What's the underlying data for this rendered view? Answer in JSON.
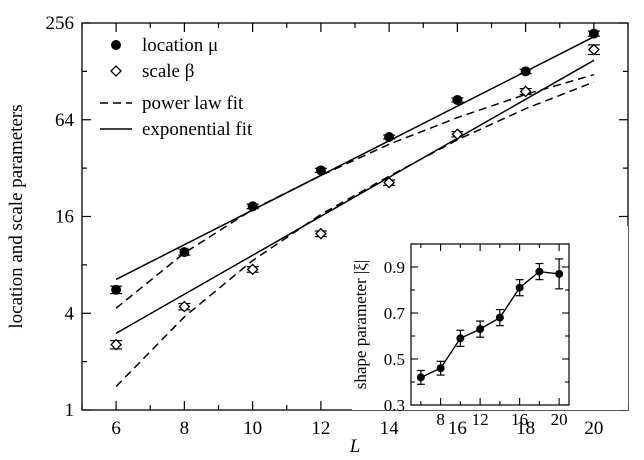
{
  "chart_data": [
    {
      "type": "line",
      "xlabel": "L",
      "ylabel": "location and scale parameters",
      "xlim": [
        5,
        21
      ],
      "ylim": [
        1,
        256
      ],
      "yscale": "log2",
      "xticks": [
        6,
        8,
        10,
        12,
        14,
        16,
        18,
        20
      ],
      "xtick_labels": [
        "6",
        "8",
        "10",
        "12",
        "14",
        "16",
        "18",
        "20"
      ],
      "yticks": [
        1,
        4,
        16,
        64,
        256
      ],
      "ytick_labels": [
        "1",
        "4",
        "16",
        "64",
        "256"
      ],
      "grid": false,
      "legend_position": "top-left",
      "legend": [
        {
          "label": "location μ",
          "marker": "filled-circle"
        },
        {
          "label": "scale β",
          "marker": "open-diamond"
        },
        {
          "label": "power law fit",
          "style": "dashed"
        },
        {
          "label": "exponential fit",
          "style": "solid"
        }
      ],
      "x": [
        6,
        8,
        10,
        12,
        14,
        16,
        18,
        20
      ],
      "series": [
        {
          "name": "location μ",
          "marker": "filled-circle",
          "values": [
            5.6,
            9.6,
            18.5,
            31,
            50,
            85,
            128,
            220
          ],
          "errors": [
            0.3,
            0.4,
            0.6,
            0.9,
            1.4,
            2.5,
            4,
            8
          ]
        },
        {
          "name": "scale β",
          "marker": "open-diamond",
          "values": [
            2.55,
            4.4,
            7.5,
            12.5,
            26,
            52,
            96,
            175
          ],
          "errors": [
            0.15,
            0.2,
            0.3,
            0.5,
            1,
            2,
            4,
            12
          ]
        }
      ],
      "fits": [
        {
          "name": "power law fit",
          "style": "dashed",
          "x": [
            6,
            8,
            10,
            12,
            14,
            16,
            18,
            20
          ],
          "values": [
            4.3,
            9.5,
            17.7,
            28.8,
            45,
            66,
            92,
            122
          ]
        },
        {
          "name": "exponential fit",
          "style": "solid",
          "x": [
            6,
            20
          ],
          "values": [
            6.5,
            210
          ]
        },
        {
          "name": "power law fit",
          "style": "dashed",
          "x": [
            6,
            8,
            10,
            12,
            14,
            16,
            18,
            20
          ],
          "values": [
            1.4,
            3.8,
            8.5,
            16.5,
            28.5,
            48,
            75,
            110
          ]
        },
        {
          "name": "exponential fit",
          "style": "solid",
          "x": [
            6,
            20
          ],
          "values": [
            3.0,
            150
          ]
        }
      ],
      "inset": {
        "type": "line",
        "xlabel": "",
        "ylabel": "shape parameter |ξ|",
        "xlim": [
          5,
          21
        ],
        "ylim": [
          0.3,
          1.0
        ],
        "xticks": [
          8,
          12,
          16,
          20
        ],
        "xtick_labels": [
          "8",
          "12",
          "16",
          "20"
        ],
        "yticks": [
          0.3,
          0.5,
          0.7,
          0.9
        ],
        "ytick_labels": [
          "0.3",
          "0.5",
          "0.7",
          "0.9"
        ],
        "x": [
          6,
          8,
          10,
          12,
          14,
          16,
          18,
          20
        ],
        "values": [
          0.42,
          0.46,
          0.59,
          0.63,
          0.68,
          0.81,
          0.88,
          0.87
        ],
        "errors": [
          0.03,
          0.03,
          0.035,
          0.035,
          0.035,
          0.035,
          0.035,
          0.065
        ]
      }
    }
  ]
}
